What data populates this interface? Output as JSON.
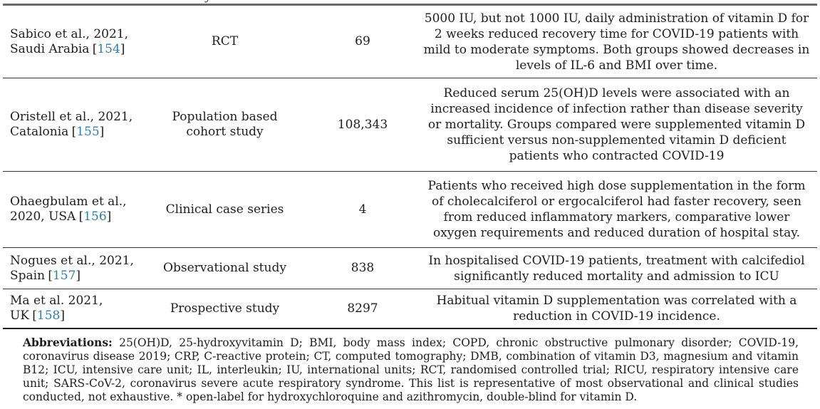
{
  "clipped_header_fragment": "y",
  "punctuation": {
    "ref_open": "[",
    "ref_close": "]"
  },
  "colors": {
    "reference_link": "#2e7fae",
    "text": "#1e1e1e",
    "top_rule": "#6a6a6a",
    "row_rule": "#333333"
  },
  "table": {
    "rows": [
      {
        "citation_lines": [
          "Sabico et al., 2021,",
          "Saudi Arabia"
        ],
        "ref": "154",
        "design_lines": [
          "RCT"
        ],
        "n": "69",
        "findings": "5000 IU, but not 1000 IU, daily administration of vitamin D for 2 weeks reduced recovery time for COVID-19 patients with mild to moderate symptoms. Both groups showed decreases in levels of IL-6 and BMI over time."
      },
      {
        "citation_lines": [
          "Oristell et al., 2021,",
          "Catalonia"
        ],
        "ref": "155",
        "design_lines": [
          "Population based",
          "cohort study"
        ],
        "n": "108,343",
        "findings": "Reduced serum 25(OH)D levels were associated with an increased incidence of infection rather than disease severity or mortality. Groups compared were supplemented vitamin D sufficient versus non-supplemented vitamin D deficient patients who contracted COVID-19"
      },
      {
        "citation_lines": [
          "Ohaegbulam et al.,",
          "2020, USA"
        ],
        "ref": "156",
        "design_lines": [
          "Clinical case series"
        ],
        "n": "4",
        "findings": "Patients who received high dose supplementation in the form of cholecalciferol or ergocalciferol had faster recovery, seen from reduced inflammatory markers, comparative lower oxygen requirements and reduced duration of hospital stay."
      },
      {
        "citation_lines": [
          "Nogues et al., 2021,",
          "Spain"
        ],
        "ref": "157",
        "design_lines": [
          "Observational study"
        ],
        "n": "838",
        "findings": "In hospitalised COVID-19 patients, treatment with calcifediol significantly reduced mortality and admission to ICU"
      },
      {
        "citation_lines": [
          "Ma et al. 2021,",
          "UK"
        ],
        "ref": "158",
        "design_lines": [
          "Prospective study"
        ],
        "n": "8297",
        "findings": "Habitual vitamin D supplementation was correlated with a reduction in COVID-19 incidence."
      }
    ]
  },
  "footer": {
    "label": "Abbreviations:",
    "text": "25(OH)D, 25-hydroxyvitamin D; BMI, body mass index; COPD, chronic obstructive pulmonary disorder; COVID-19, coronavirus disease 2019; CRP, C-reactive protein; CT, computed tomography; DMB, combination of vitamin D3, magnesium and vitamin B12; ICU, intensive care unit; IL, interleukin; IU, international units; RCT, randomised controlled trial; RICU, respiratory intensive care unit; SARS-CoV-2, coronavirus severe acute respiratory syndrome. This list is representative of most observational and clinical studies conducted, not exhaustive. * open-label for hydroxychloroquine and azithromycin, double-blind for vitamin D."
  }
}
